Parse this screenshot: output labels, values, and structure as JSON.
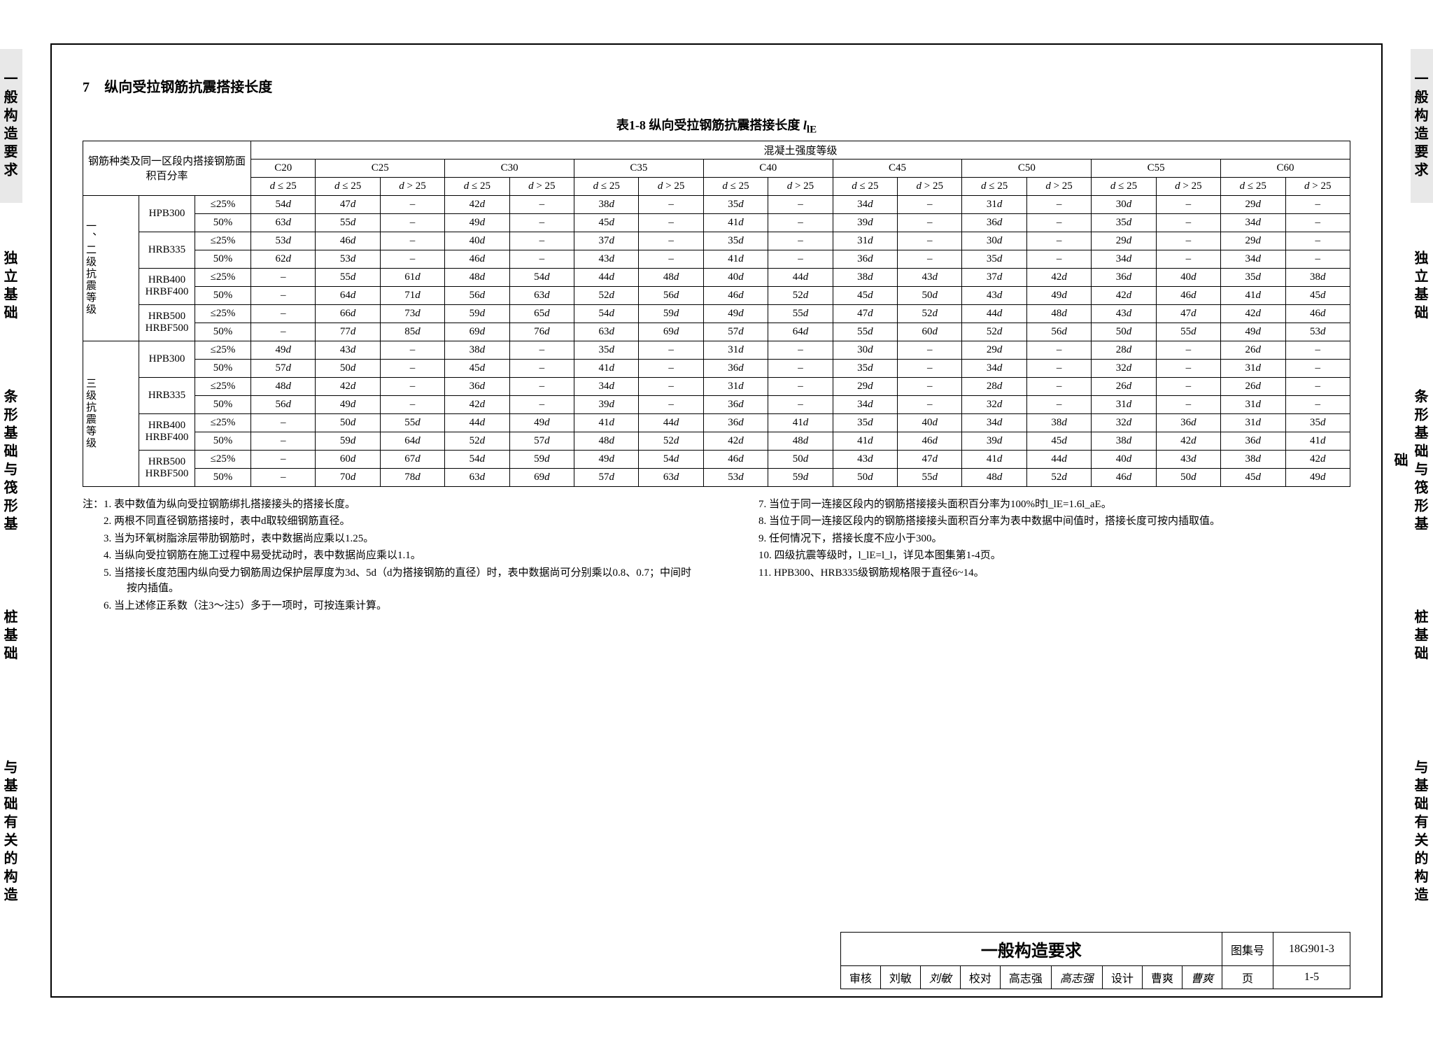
{
  "side_tabs": [
    "一般构造要求",
    "独立基础",
    "条形基础与筏形基础",
    "桩基础",
    "与基础有关的构造"
  ],
  "side_tab_tops": [
    70,
    330,
    530,
    830,
    1060
  ],
  "side_tab_heights": [
    220,
    160,
    260,
    160,
    260
  ],
  "section": {
    "num": "7",
    "title": "纵向受拉钢筋抗震搭接长度"
  },
  "caption": {
    "prefix": "表1-8  纵向受拉钢筋抗震搭接长度 ",
    "sym": "l",
    "sub": "lE"
  },
  "header": {
    "rebar_group": "钢筋种类及同一区段内搭接钢筋面积百分率",
    "concrete": "混凝土强度等级",
    "grades": [
      "C20",
      "C25",
      "C30",
      "C35",
      "C40",
      "C45",
      "C50",
      "C55",
      "C60"
    ],
    "d1": "d ≤ 25",
    "d2": "d > 25"
  },
  "row_group1": "一、二级抗震等级",
  "row_group2": "三级抗震等级",
  "types": [
    "HPB300",
    "HRB335",
    "HRB400 HRBF400",
    "HRB500 HRBF500"
  ],
  "pcts": [
    "≤25%",
    "50%"
  ],
  "g1": [
    [
      "54d",
      "47d",
      "–",
      "42d",
      "–",
      "38d",
      "–",
      "35d",
      "–",
      "34d",
      "–",
      "31d",
      "–",
      "30d",
      "–",
      "29d",
      "–"
    ],
    [
      "63d",
      "55d",
      "–",
      "49d",
      "–",
      "45d",
      "–",
      "41d",
      "–",
      "39d",
      "–",
      "36d",
      "–",
      "35d",
      "–",
      "34d",
      "–"
    ],
    [
      "53d",
      "46d",
      "–",
      "40d",
      "–",
      "37d",
      "–",
      "35d",
      "–",
      "31d",
      "–",
      "30d",
      "–",
      "29d",
      "–",
      "29d",
      "–"
    ],
    [
      "62d",
      "53d",
      "–",
      "46d",
      "–",
      "43d",
      "–",
      "41d",
      "–",
      "36d",
      "–",
      "35d",
      "–",
      "34d",
      "–",
      "34d",
      "–"
    ],
    [
      "–",
      "55d",
      "61d",
      "48d",
      "54d",
      "44d",
      "48d",
      "40d",
      "44d",
      "38d",
      "43d",
      "37d",
      "42d",
      "36d",
      "40d",
      "35d",
      "38d"
    ],
    [
      "–",
      "64d",
      "71d",
      "56d",
      "63d",
      "52d",
      "56d",
      "46d",
      "52d",
      "45d",
      "50d",
      "43d",
      "49d",
      "42d",
      "46d",
      "41d",
      "45d"
    ],
    [
      "–",
      "66d",
      "73d",
      "59d",
      "65d",
      "54d",
      "59d",
      "49d",
      "55d",
      "47d",
      "52d",
      "44d",
      "48d",
      "43d",
      "47d",
      "42d",
      "46d"
    ],
    [
      "–",
      "77d",
      "85d",
      "69d",
      "76d",
      "63d",
      "69d",
      "57d",
      "64d",
      "55d",
      "60d",
      "52d",
      "56d",
      "50d",
      "55d",
      "49d",
      "53d"
    ]
  ],
  "g2": [
    [
      "49d",
      "43d",
      "–",
      "38d",
      "–",
      "35d",
      "–",
      "31d",
      "–",
      "30d",
      "–",
      "29d",
      "–",
      "28d",
      "–",
      "26d",
      "–"
    ],
    [
      "57d",
      "50d",
      "–",
      "45d",
      "–",
      "41d",
      "–",
      "36d",
      "–",
      "35d",
      "–",
      "34d",
      "–",
      "32d",
      "–",
      "31d",
      "–"
    ],
    [
      "48d",
      "42d",
      "–",
      "36d",
      "–",
      "34d",
      "–",
      "31d",
      "–",
      "29d",
      "–",
      "28d",
      "–",
      "26d",
      "–",
      "26d",
      "–"
    ],
    [
      "56d",
      "49d",
      "–",
      "42d",
      "–",
      "39d",
      "–",
      "36d",
      "–",
      "34d",
      "–",
      "32d",
      "–",
      "31d",
      "–",
      "31d",
      "–"
    ],
    [
      "–",
      "50d",
      "55d",
      "44d",
      "49d",
      "41d",
      "44d",
      "36d",
      "41d",
      "35d",
      "40d",
      "34d",
      "38d",
      "32d",
      "36d",
      "31d",
      "35d"
    ],
    [
      "–",
      "59d",
      "64d",
      "52d",
      "57d",
      "48d",
      "52d",
      "42d",
      "48d",
      "41d",
      "46d",
      "39d",
      "45d",
      "38d",
      "42d",
      "36d",
      "41d"
    ],
    [
      "–",
      "60d",
      "67d",
      "54d",
      "59d",
      "49d",
      "54d",
      "46d",
      "50d",
      "43d",
      "47d",
      "41d",
      "44d",
      "40d",
      "43d",
      "38d",
      "42d"
    ],
    [
      "–",
      "70d",
      "78d",
      "63d",
      "69d",
      "57d",
      "63d",
      "53d",
      "59d",
      "50d",
      "55d",
      "48d",
      "52d",
      "46d",
      "50d",
      "45d",
      "49d"
    ]
  ],
  "notes_left": [
    "注：1. 表中数值为纵向受拉钢筋绑扎搭接接头的搭接长度。",
    "2. 两根不同直径钢筋搭接时，表中d取较细钢筋直径。",
    "3. 当为环氧树脂涂层带肋钢筋时，表中数据尚应乘以1.25。",
    "4. 当纵向受拉钢筋在施工过程中易受扰动时，表中数据尚应乘以1.1。",
    "5. 当搭接长度范围内纵向受力钢筋周边保护层厚度为3d、5d（d为搭接钢筋的直径）时，表中数据尚可分别乘以0.8、0.7；中间时按内插值。",
    "6. 当上述修正系数（注3～注5）多于一项时，可按连乘计算。"
  ],
  "notes_right": [
    "7. 当位于同一连接区段内的钢筋搭接接头面积百分率为100%时l_lE=1.6l_aE。",
    "8. 当位于同一连接区段内的钢筋搭接接头面积百分率为表中数据中间值时，搭接长度可按内插取值。",
    "9. 任何情况下，搭接长度不应小于300。",
    "10. 四级抗震等级时，l_lE=l_l，详见本图集第1-4页。",
    "11. HPB300、HRB335级钢筋规格限于直径6~14。"
  ],
  "title_block": {
    "main": "一般构造要求",
    "atlas_lbl": "图集号",
    "atlas": "18G901-3",
    "review_lbl": "审核",
    "review": "刘敏",
    "review_sig": "刘敏",
    "check_lbl": "校对",
    "check": "高志强",
    "check_sig": "高志强",
    "design_lbl": "设计",
    "design": "曹爽",
    "design_sig": "曹爽",
    "page_lbl": "页",
    "page": "1-5"
  }
}
